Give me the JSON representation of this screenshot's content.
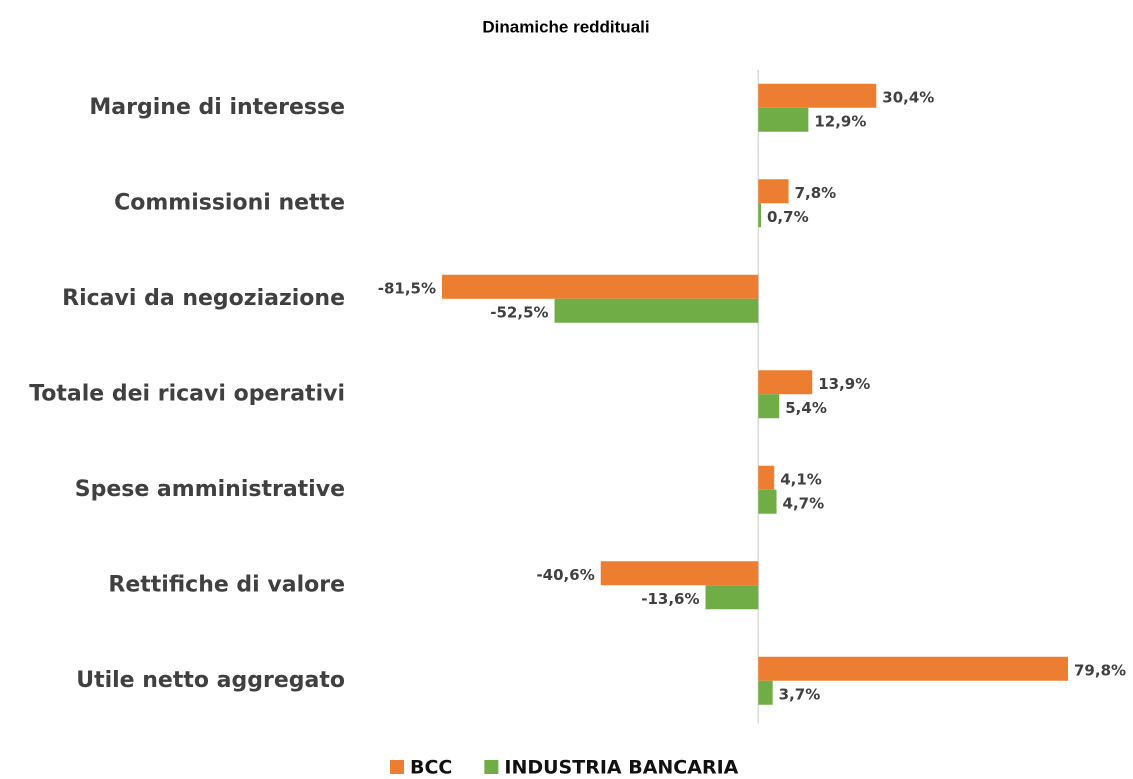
{
  "chart_data": {
    "type": "hbar",
    "title": "Dinamiche reddituali",
    "categories": [
      "Margine di interesse",
      "Commissioni nette",
      "Ricavi da negoziazione",
      "Totale dei ricavi operativi",
      "Spese amministrative",
      "Rettifiche di valore",
      "Utile netto aggregato"
    ],
    "series": [
      {
        "name": "BCC",
        "color": "#ed7d31",
        "values": [
          30.4,
          7.8,
          -81.5,
          13.9,
          4.1,
          -40.6,
          79.8
        ],
        "value_labels": [
          "30,4%",
          "7,8%",
          "-81,5%",
          "13,9%",
          "4,1%",
          "-40,6%",
          "79,8%"
        ]
      },
      {
        "name": "INDUSTRIA BANCARIA",
        "color": "#70ad47",
        "values": [
          12.9,
          0.7,
          -52.5,
          5.4,
          4.7,
          -13.6,
          3.7
        ],
        "value_labels": [
          "12,9%",
          "0,7%",
          "-52,5%",
          "5,4%",
          "4,7%",
          "-13,6%",
          "3,7%"
        ]
      }
    ],
    "xlim": [
      -90,
      95
    ],
    "legend": "bottom"
  }
}
